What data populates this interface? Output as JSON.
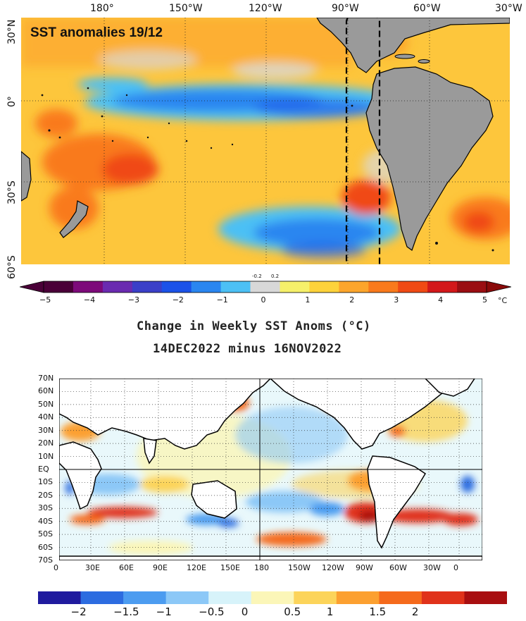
{
  "top_map": {
    "title": "SST anomalies 19/12",
    "lon_labels": [
      "180°",
      "150°W",
      "120°W",
      "90°W",
      "60°W",
      "30°W"
    ],
    "lat_labels": [
      "30°N",
      "0°",
      "30°S",
      "60°S"
    ],
    "colorbar": {
      "ticks": [
        "−5",
        "−4",
        "−3",
        "−2",
        "−1",
        "0",
        "1",
        "2",
        "3",
        "4",
        "5"
      ],
      "small_ticks": [
        "-0.2",
        "0.2"
      ],
      "unit": "°C",
      "colors": [
        "#4a0038",
        "#7d0a7a",
        "#6a2bb0",
        "#3a3fc8",
        "#1b52e8",
        "#2a86f0",
        "#4cc0f5",
        "#d8d8d8",
        "#f6f06a",
        "#fdd23a",
        "#fca52c",
        "#f97a1c",
        "#f04a14",
        "#d3181a",
        "#9a0e12"
      ]
    }
  },
  "bottom_map": {
    "title_line1": "Change in Weekly SST Anoms (°C)",
    "title_line2": "14DEC2022 minus 16NOV2022",
    "lat_labels": [
      "70N",
      "60N",
      "50N",
      "40N",
      "30N",
      "20N",
      "10N",
      "EQ",
      "10S",
      "20S",
      "30S",
      "40S",
      "50S",
      "60S",
      "70S"
    ],
    "lon_labels": [
      "0",
      "30E",
      "60E",
      "90E",
      "120E",
      "150E",
      "180",
      "150W",
      "120W",
      "90W",
      "60W",
      "30W",
      "0"
    ],
    "colorbar": {
      "ticks": [
        "−2",
        "−1.5",
        "−1",
        "−0.5",
        "0",
        "0.5",
        "1",
        "1.5",
        "2"
      ],
      "colors": [
        "#1f1a9e",
        "#2c6ce0",
        "#4c9cf0",
        "#8cc8f7",
        "#d7f3fa",
        "#fbf6b8",
        "#fcd45a",
        "#fca030",
        "#f56a1c",
        "#e0321a",
        "#a80e10"
      ]
    }
  }
}
